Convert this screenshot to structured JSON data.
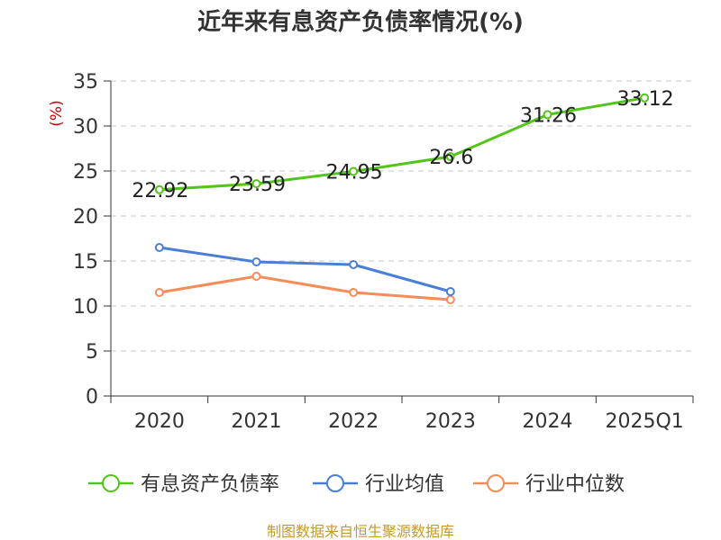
{
  "chart_data": {
    "type": "line",
    "title": "近年来有息资产负债率情况(%)",
    "ylabel": "(%)",
    "xlabel": "",
    "categories": [
      "2020",
      "2021",
      "2022",
      "2023",
      "2024",
      "2025Q1"
    ],
    "ylim": [
      0,
      35
    ],
    "yticks": [
      0,
      5,
      10,
      15,
      20,
      25,
      30,
      35
    ],
    "grid": "horizontal-dashed",
    "legend_position": "bottom",
    "series": [
      {
        "name": "有息资产负债率",
        "color": "#52c41a",
        "values": [
          22.92,
          23.59,
          24.95,
          26.6,
          31.26,
          33.12
        ],
        "labels": [
          "22.92",
          "23.59",
          "24.95",
          "26.6",
          "31.26",
          "33.12"
        ]
      },
      {
        "name": "行业均值",
        "color": "#4a7fd6",
        "values": [
          16.5,
          14.9,
          14.6,
          11.6,
          null,
          null
        ]
      },
      {
        "name": "行业中位数",
        "color": "#f58c5a",
        "values": [
          11.5,
          13.3,
          11.5,
          10.7,
          null,
          null
        ]
      }
    ]
  },
  "ylabel_color": "#cc0000",
  "source": "制图数据来自恒生聚源数据库",
  "source_color": "#c59a2a"
}
